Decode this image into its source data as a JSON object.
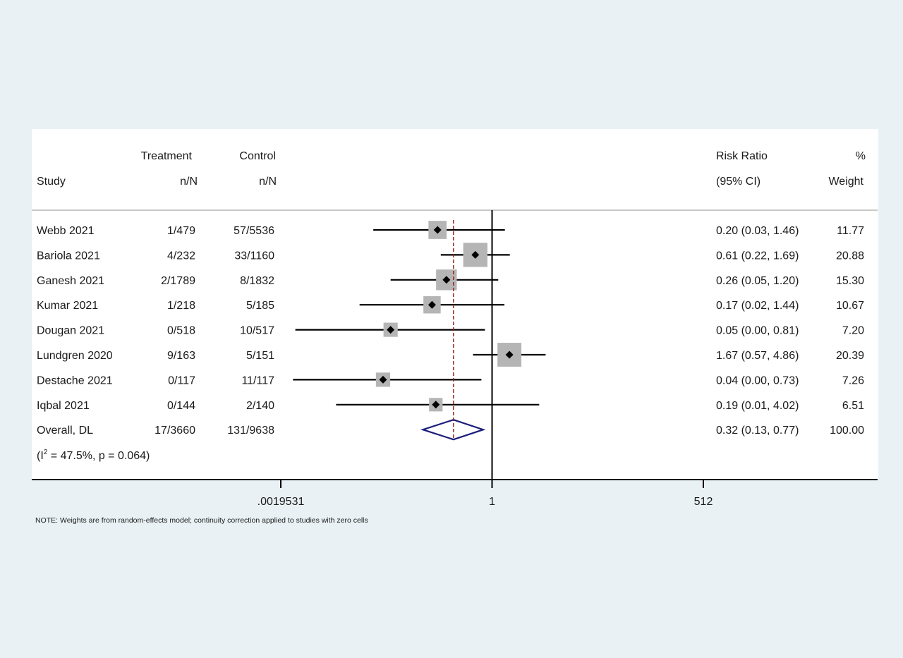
{
  "headers": {
    "study": "Study",
    "treatment": "Treatment",
    "treatment_sub": "n/N",
    "control": "Control",
    "control_sub": "n/N",
    "effect": "Risk Ratio",
    "effect_sub": "(95% CI)",
    "weight": "%",
    "weight_sub": "Weight"
  },
  "heterogeneity": {
    "prefix": "(I",
    "sup": "2",
    "rest": " = 47.5%, p = 0.064)"
  },
  "note": "NOTE: Weights are from random-effects model; continuity correction applied to studies with zero cells",
  "chart_data": {
    "type": "forest",
    "scale": "log2",
    "xlim": [
      0.0019531,
      512
    ],
    "ticks": [
      {
        "value": 0.0019531,
        "label": ".0019531"
      },
      {
        "value": 1,
        "label": "1"
      },
      {
        "value": 512,
        "label": "512"
      }
    ],
    "null_value": 1,
    "overall_line": 0.32,
    "studies": [
      {
        "study": "Webb 2021",
        "treatment": "1/479",
        "control": "57/5536",
        "rr": 0.2,
        "lo": 0.03,
        "hi": 1.46,
        "ci_text": "0.20 (0.03, 1.46)",
        "weight": 11.77,
        "weight_text": "11.77"
      },
      {
        "study": "Bariola 2021",
        "treatment": "4/232",
        "control": "33/1160",
        "rr": 0.61,
        "lo": 0.22,
        "hi": 1.69,
        "ci_text": "0.61 (0.22, 1.69)",
        "weight": 20.88,
        "weight_text": "20.88"
      },
      {
        "study": "Ganesh 2021",
        "treatment": "2/1789",
        "control": "8/1832",
        "rr": 0.26,
        "lo": 0.05,
        "hi": 1.2,
        "ci_text": "0.26 (0.05, 1.20)",
        "weight": 15.3,
        "weight_text": "15.30"
      },
      {
        "study": "Kumar 2021",
        "treatment": "1/218",
        "control": "5/185",
        "rr": 0.17,
        "lo": 0.02,
        "hi": 1.44,
        "ci_text": "0.17 (0.02, 1.44)",
        "weight": 10.67,
        "weight_text": "10.67"
      },
      {
        "study": "Dougan 2021",
        "treatment": "0/518",
        "control": "10/517",
        "rr": 0.05,
        "lo": 0.003,
        "hi": 0.81,
        "ci_text": "0.05 (0.00, 0.81)",
        "weight": 7.2,
        "weight_text": "7.20"
      },
      {
        "study": "Lundgren 2020",
        "treatment": "9/163",
        "control": "5/151",
        "rr": 1.67,
        "lo": 0.57,
        "hi": 4.86,
        "ci_text": "1.67 (0.57, 4.86)",
        "weight": 20.39,
        "weight_text": "20.39"
      },
      {
        "study": "Destache 2021",
        "treatment": "0/117",
        "control": "11/117",
        "rr": 0.04,
        "lo": 0.0028,
        "hi": 0.73,
        "ci_text": "0.04 (0.00, 0.73)",
        "weight": 7.26,
        "weight_text": "7.26"
      },
      {
        "study": "Iqbal 2021",
        "treatment": "0/144",
        "control": "2/140",
        "rr": 0.19,
        "lo": 0.01,
        "hi": 4.02,
        "ci_text": "0.19 (0.01, 4.02)",
        "weight": 6.51,
        "weight_text": "6.51"
      }
    ],
    "overall": {
      "study": "Overall, DL",
      "treatment": "17/3660",
      "control": "131/9638",
      "rr": 0.32,
      "lo": 0.13,
      "hi": 0.77,
      "ci_text": "0.32 (0.13, 0.77)",
      "weight_text": "100.00"
    },
    "colors": {
      "ci_line": "#000000",
      "weight_box": "#b5b5b5",
      "point": "#000000",
      "overall_diamond": "#1c1f7a",
      "overall_line": "#9b1c1c",
      "background": "#e9f1f4",
      "panel": "#ffffff"
    }
  }
}
